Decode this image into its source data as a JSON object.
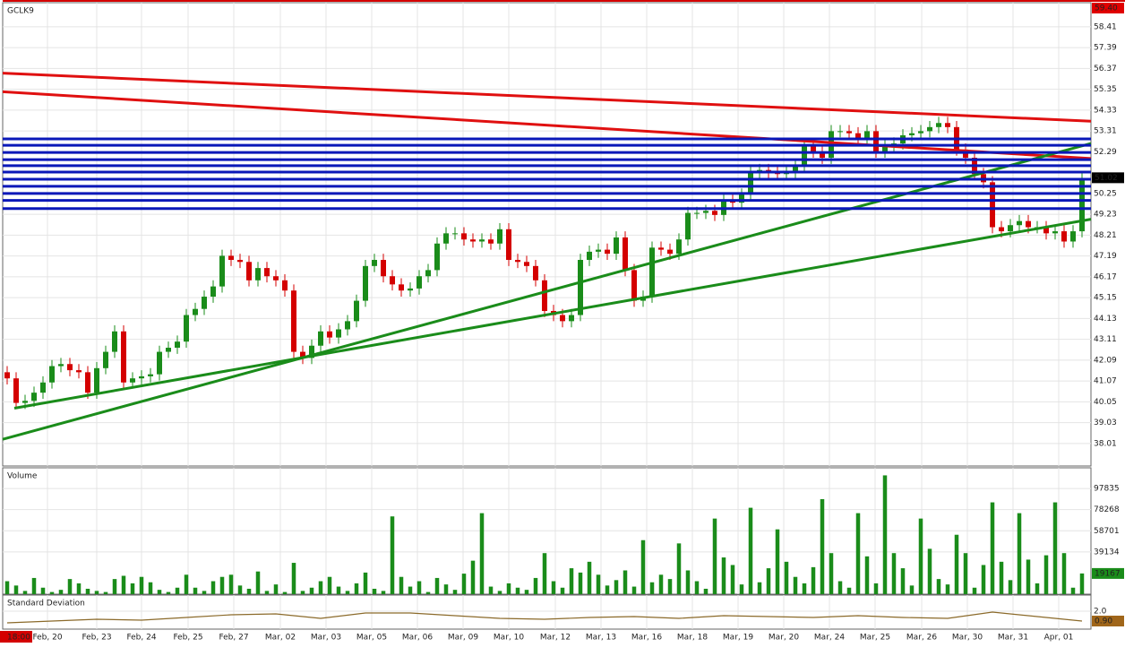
{
  "chart_data": [
    {
      "type": "candlestick",
      "title": "GCLK9",
      "open": [
        41.5,
        41.2,
        40.0,
        40.1,
        40.5,
        41.0,
        41.8,
        41.9,
        41.6,
        41.5,
        40.5,
        41.7,
        42.5,
        43.5,
        41.0,
        41.2,
        41.3,
        41.4,
        42.5,
        42.7,
        43.0,
        44.3,
        44.6,
        45.2,
        45.7,
        47.2,
        47.0,
        46.9,
        46.0,
        46.6,
        46.2,
        46.0,
        45.5,
        42.5,
        42.2,
        42.8,
        43.5,
        43.2,
        43.6,
        44.0,
        45.0,
        46.7,
        47.0,
        46.2,
        45.8,
        45.5,
        45.6,
        46.2,
        46.5,
        47.8,
        48.3,
        48.3,
        48.0,
        47.9,
        48.0,
        47.8,
        48.5,
        47.0,
        46.9,
        46.7,
        46.0,
        44.5,
        44.3,
        44.0,
        44.3,
        47.0,
        47.4,
        47.5,
        47.3,
        48.1,
        46.5,
        45.0,
        45.2,
        47.6,
        47.5,
        47.3,
        48.0,
        49.3,
        49.3,
        49.4,
        49.2,
        49.9,
        49.8,
        50.2,
        51.3,
        51.4,
        51.3,
        51.2,
        51.3,
        51.6,
        52.6,
        52.3,
        52.0,
        53.3,
        53.3,
        53.2,
        52.9,
        53.3,
        52.3,
        52.6,
        52.7,
        53.1,
        53.2,
        53.3,
        53.5,
        53.7,
        53.5,
        52.4,
        52.0,
        51.2,
        50.8,
        48.6,
        48.4,
        48.7,
        48.9,
        48.6,
        48.6,
        48.3,
        48.4,
        47.9,
        48.4
      ],
      "high": [
        41.8,
        41.5,
        40.4,
        40.8,
        41.3,
        42.1,
        42.2,
        42.2,
        41.9,
        41.8,
        42.0,
        42.8,
        43.8,
        43.8,
        41.5,
        41.6,
        41.7,
        42.8,
        43.0,
        43.3,
        44.6,
        44.9,
        45.5,
        46.0,
        47.5,
        47.5,
        47.3,
        47.2,
        46.9,
        46.9,
        46.5,
        46.3,
        45.8,
        42.8,
        43.1,
        43.8,
        43.8,
        43.9,
        44.3,
        45.3,
        47.0,
        47.3,
        47.3,
        46.5,
        46.1,
        45.9,
        46.5,
        46.8,
        48.1,
        48.6,
        48.6,
        48.6,
        48.3,
        48.3,
        48.3,
        48.8,
        48.8,
        47.3,
        47.2,
        47.0,
        46.3,
        44.8,
        44.6,
        44.6,
        47.3,
        47.7,
        47.8,
        47.8,
        48.4,
        48.4,
        46.8,
        45.5,
        47.9,
        47.9,
        47.8,
        48.3,
        49.6,
        49.6,
        49.7,
        49.7,
        50.2,
        50.2,
        50.5,
        51.6,
        51.7,
        51.7,
        51.6,
        51.6,
        51.9,
        52.9,
        52.9,
        52.6,
        53.6,
        53.6,
        53.6,
        53.5,
        53.6,
        53.6,
        52.9,
        53.0,
        53.4,
        53.5,
        53.6,
        53.8,
        54.0,
        54.0,
        53.8,
        52.7,
        52.3,
        51.5,
        51.1,
        48.9,
        49.0,
        49.2,
        49.2,
        48.9,
        48.9,
        48.7,
        48.7,
        48.7,
        51.3
      ],
      "low": [
        40.9,
        39.7,
        39.7,
        39.8,
        40.2,
        40.7,
        41.5,
        41.3,
        41.2,
        40.2,
        40.2,
        41.4,
        42.2,
        40.7,
        40.7,
        40.9,
        41.0,
        41.1,
        42.2,
        42.4,
        42.7,
        44.0,
        44.3,
        44.9,
        45.4,
        46.7,
        46.6,
        45.7,
        45.7,
        45.9,
        45.7,
        45.2,
        42.2,
        41.9,
        41.9,
        42.5,
        42.9,
        42.9,
        43.3,
        43.7,
        44.7,
        46.4,
        45.9,
        45.5,
        45.2,
        45.2,
        45.3,
        45.9,
        46.2,
        47.5,
        48.0,
        47.7,
        47.6,
        47.6,
        47.5,
        47.5,
        46.7,
        46.6,
        46.4,
        45.7,
        44.2,
        44.0,
        43.7,
        43.7,
        44.0,
        46.7,
        47.1,
        47.0,
        47.0,
        46.2,
        44.7,
        44.7,
        44.9,
        47.2,
        47.0,
        47.0,
        47.7,
        49.0,
        49.0,
        48.9,
        48.9,
        49.5,
        49.5,
        49.9,
        51.0,
        51.0,
        50.9,
        50.9,
        51.0,
        51.3,
        52.0,
        51.7,
        51.7,
        53.0,
        52.9,
        52.6,
        52.6,
        52.0,
        52.0,
        52.3,
        52.4,
        52.8,
        52.9,
        53.0,
        53.2,
        53.2,
        52.1,
        51.7,
        50.9,
        50.5,
        48.3,
        48.1,
        48.1,
        48.4,
        48.3,
        48.3,
        48.0,
        48.0,
        47.6,
        47.6,
        48.1
      ],
      "close": [
        41.2,
        40.0,
        40.1,
        40.5,
        41.0,
        41.8,
        41.9,
        41.6,
        41.5,
        40.5,
        41.7,
        42.5,
        43.5,
        41.0,
        41.2,
        41.3,
        41.4,
        42.5,
        42.7,
        43.0,
        44.3,
        44.6,
        45.2,
        45.7,
        47.2,
        47.0,
        46.9,
        46.0,
        46.6,
        46.2,
        46.0,
        45.5,
        42.5,
        42.2,
        42.8,
        43.5,
        43.2,
        43.6,
        44.0,
        45.0,
        46.7,
        47.0,
        46.2,
        45.8,
        45.5,
        45.6,
        46.2,
        46.5,
        47.8,
        48.3,
        48.3,
        48.0,
        47.9,
        48.0,
        47.8,
        48.5,
        47.0,
        46.9,
        46.7,
        46.0,
        44.5,
        44.3,
        44.0,
        44.3,
        47.0,
        47.4,
        47.5,
        47.3,
        48.1,
        46.5,
        45.0,
        45.2,
        47.6,
        47.5,
        47.3,
        48.0,
        49.3,
        49.3,
        49.4,
        49.2,
        49.9,
        49.8,
        50.2,
        51.3,
        51.4,
        51.3,
        51.2,
        51.3,
        51.6,
        52.6,
        52.3,
        52.0,
        53.3,
        53.3,
        53.2,
        52.9,
        53.3,
        52.3,
        52.6,
        52.7,
        53.1,
        53.2,
        53.3,
        53.5,
        53.7,
        53.5,
        52.4,
        52.0,
        51.2,
        50.8,
        48.6,
        48.4,
        48.7,
        48.9,
        48.6,
        48.6,
        48.3,
        48.4,
        47.9,
        48.4,
        51.0
      ],
      "up_color": "#1a8c1a",
      "down_color": "#d40000",
      "xlim": [
        -0.5,
        121
      ],
      "ylim": [
        36.91,
        59.59
      ],
      "yticks": [
        58.41,
        57.39,
        56.37,
        55.35,
        54.33,
        53.31,
        52.29,
        50.25,
        49.23,
        48.21,
        47.19,
        46.17,
        45.15,
        44.13,
        43.11,
        42.09,
        41.07,
        40.05,
        39.03,
        38.01
      ],
      "markers": [
        {
          "value": 59.4,
          "label": "59.40",
          "color": "#e00000"
        },
        {
          "value": 51.02,
          "label": "51.02",
          "color": "#000000"
        }
      ],
      "lines": [
        {
          "color": "#e01010",
          "x": [
            -0.5,
            121
          ],
          "y": [
            56.14,
            53.79
          ]
        },
        {
          "color": "#e01010",
          "x": [
            -0.5,
            121
          ],
          "y": [
            55.23,
            51.96
          ]
        },
        {
          "color": "#1a8c1a",
          "x": [
            -0.5,
            121
          ],
          "y": [
            38.22,
            52.7
          ]
        },
        {
          "color": "#1a8c1a",
          "x": [
            0.8,
            121
          ],
          "y": [
            39.74,
            48.99
          ]
        },
        {
          "color": "#0a18b8",
          "x": [
            -0.5,
            121
          ],
          "y": [
            52.92,
            52.92
          ]
        },
        {
          "color": "#0a18b8",
          "x": [
            -0.5,
            121
          ],
          "y": [
            52.61,
            52.61
          ]
        },
        {
          "color": "#0a18b8",
          "x": [
            -0.5,
            121
          ],
          "y": [
            52.26,
            52.26
          ]
        },
        {
          "color": "#0a18b8",
          "x": [
            -0.5,
            121
          ],
          "y": [
            51.91,
            51.91
          ]
        },
        {
          "color": "#0a18b8",
          "x": [
            -0.5,
            121
          ],
          "y": [
            51.61,
            51.61
          ]
        },
        {
          "color": "#0a18b8",
          "x": [
            -0.5,
            121
          ],
          "y": [
            51.3,
            51.3
          ]
        },
        {
          "color": "#0a18b8",
          "x": [
            -0.5,
            121
          ],
          "y": [
            50.95,
            50.95
          ]
        },
        {
          "color": "#0a18b8",
          "x": [
            -0.5,
            121
          ],
          "y": [
            50.6,
            50.6
          ]
        },
        {
          "color": "#0a18b8",
          "x": [
            -0.5,
            121
          ],
          "y": [
            50.25,
            50.25
          ]
        },
        {
          "color": "#0a18b8",
          "x": [
            -0.5,
            121
          ],
          "y": [
            49.91,
            49.91
          ]
        },
        {
          "color": "#0a18b8",
          "x": [
            -0.5,
            121
          ],
          "y": [
            49.51,
            49.51
          ]
        }
      ]
    },
    {
      "type": "bar",
      "title": "Volume",
      "color": "#1a8c1a",
      "values": [
        12000,
        8000,
        3000,
        15000,
        6000,
        2000,
        4000,
        14000,
        10000,
        5000,
        3000,
        2000,
        14000,
        17000,
        10000,
        16000,
        11000,
        4000,
        2000,
        6000,
        18000,
        6000,
        3000,
        12000,
        16000,
        18000,
        8000,
        5000,
        21000,
        3000,
        9000,
        2000,
        29000,
        3000,
        6000,
        12000,
        16000,
        7000,
        3000,
        10000,
        20000,
        5000,
        3000,
        72000,
        16000,
        7000,
        12000,
        2000,
        15000,
        9000,
        4000,
        19000,
        31000,
        75000,
        7000,
        3000,
        10000,
        6000,
        4000,
        15000,
        38000,
        12000,
        6000,
        24000,
        20000,
        30000,
        18000,
        8000,
        13000,
        22000,
        7000,
        50000,
        11000,
        18000,
        14000,
        47000,
        22000,
        12000,
        5000,
        70000,
        34000,
        27000,
        9000,
        80000,
        11000,
        24000,
        60000,
        30000,
        16000,
        10000,
        25000,
        88000,
        38000,
        12000,
        6000,
        75000,
        35000,
        10000,
        110000,
        38000,
        24000,
        8000,
        70000,
        42000,
        14000,
        9000,
        55000,
        38000,
        6000,
        27000,
        85000,
        30000,
        13000,
        75000,
        32000,
        10000,
        36000,
        85000,
        38000,
        6000,
        19167
      ],
      "xlim": [
        -0.5,
        121
      ],
      "ylim": [
        0,
        117000
      ],
      "yticks": [
        97835,
        78268,
        58701,
        39134
      ],
      "markers": [
        {
          "value": 19167,
          "color": "#1a8c1a"
        }
      ]
    },
    {
      "type": "line",
      "title": "Standard Deviation",
      "color": "#8b6a2a",
      "x": [
        0,
        5,
        10,
        15,
        20,
        25,
        30,
        35,
        40,
        45,
        50,
        55,
        60,
        65,
        70,
        75,
        80,
        85,
        90,
        95,
        100,
        105,
        110,
        115,
        120
      ],
      "values": [
        0.7,
        0.9,
        1.1,
        1.0,
        1.3,
        1.6,
        1.7,
        1.2,
        1.8,
        1.8,
        1.5,
        1.2,
        1.1,
        1.3,
        1.4,
        1.2,
        1.5,
        1.4,
        1.3,
        1.5,
        1.3,
        1.2,
        1.9,
        1.4,
        0.9
      ],
      "xlim": [
        -0.5,
        121
      ],
      "ylim": [
        0,
        3.8
      ],
      "yticks": [
        {
          "value": 2,
          "label": "2.0"
        }
      ],
      "markers": [
        {
          "value": 0.9,
          "label": "0.90",
          "color": "#a0661a"
        }
      ],
      "cursor_time": "18:00",
      "xticks": [
        {
          "value": 4.5,
          "label": "Feb, 20"
        },
        {
          "value": 10,
          "label": "Feb, 23"
        },
        {
          "value": 15,
          "label": "Feb, 24"
        },
        {
          "value": 20.2,
          "label": "Feb, 25"
        },
        {
          "value": 25.3,
          "label": "Feb, 27"
        },
        {
          "value": 30.5,
          "label": "Mar, 02"
        },
        {
          "value": 35.6,
          "label": "Mar, 03"
        },
        {
          "value": 40.7,
          "label": "Mar, 05"
        },
        {
          "value": 45.8,
          "label": "Mar, 06"
        },
        {
          "value": 50.9,
          "label": "Mar, 09"
        },
        {
          "value": 56,
          "label": "Mar, 10"
        },
        {
          "value": 61.2,
          "label": "Mar, 12"
        },
        {
          "value": 66.3,
          "label": "Mar, 13"
        },
        {
          "value": 71.4,
          "label": "Mar, 16"
        },
        {
          "value": 76.5,
          "label": "Mar, 18"
        },
        {
          "value": 81.6,
          "label": "Mar, 19"
        },
        {
          "value": 86.7,
          "label": "Mar, 20"
        },
        {
          "value": 91.8,
          "label": "Mar, 24"
        },
        {
          "value": 96.9,
          "label": "Mar, 25"
        },
        {
          "value": 102.1,
          "label": "Mar, 26"
        },
        {
          "value": 107.2,
          "label": "Mar, 30"
        },
        {
          "value": 112.3,
          "label": "Mar, 31"
        },
        {
          "value": 117.4,
          "label": "Apr, 01"
        }
      ]
    }
  ]
}
